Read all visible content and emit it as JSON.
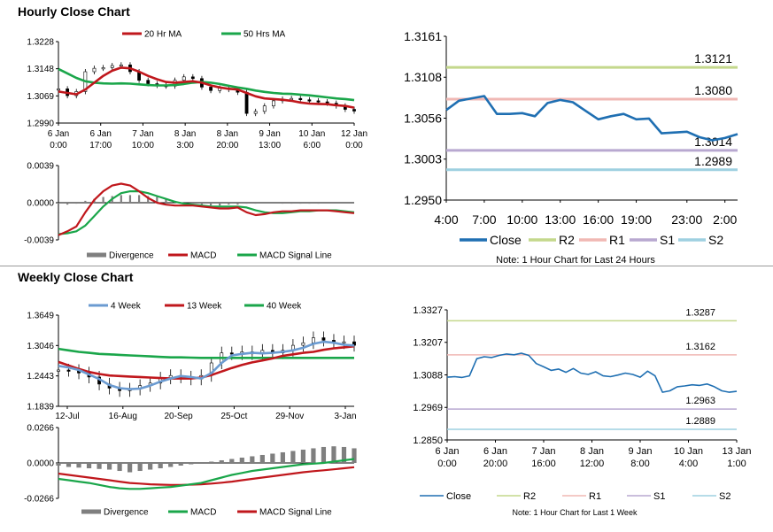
{
  "sections": {
    "hourly_title": "Hourly Close Chart",
    "weekly_title": "Weekly Close Chart"
  },
  "colors": {
    "close": "#1f6fb2",
    "ma_red": "#c0171c",
    "ma_green": "#1aa64a",
    "ma_blue": "#6b9bd1",
    "r2": "#c4d88c",
    "r1": "#f0b8b4",
    "s1": "#b8a8d0",
    "s2": "#9ed0e0",
    "divergence": "#7f7f7f",
    "candle": "#000000"
  },
  "chart_data": [
    {
      "id": "hourly_price",
      "type": "line",
      "title": "",
      "ylim": [
        1.299,
        1.3228
      ],
      "yticks": [
        "1.3228",
        "1.3148",
        "1.3069",
        "1.2990"
      ],
      "xticks": [
        {
          "date": "6 Jan",
          "time": "0:00"
        },
        {
          "date": "6 Jan",
          "time": "17:00"
        },
        {
          "date": "7 Jan",
          "time": "10:00"
        },
        {
          "date": "8 Jan",
          "time": "3:00"
        },
        {
          "date": "8 Jan",
          "time": "20:00"
        },
        {
          "date": "9 Jan",
          "time": "13:00"
        },
        {
          "date": "10 Jan",
          "time": "6:00"
        },
        {
          "date": "12 Jan",
          "time": "0:00"
        }
      ],
      "series": [
        {
          "name": "20 Hr MA",
          "values": [
            1.3082,
            1.3078,
            1.3074,
            1.3088,
            1.3108,
            1.3128,
            1.3143,
            1.3152,
            1.315,
            1.314,
            1.3128,
            1.3118,
            1.311,
            1.3108,
            1.311,
            1.3112,
            1.3108,
            1.31,
            1.3094,
            1.309,
            1.3088,
            1.3078,
            1.3068,
            1.3062,
            1.306,
            1.3058,
            1.3055,
            1.305,
            1.3047,
            1.3046,
            1.3045,
            1.3042,
            1.304,
            1.3035
          ]
        },
        {
          "name": "50 Hrs MA",
          "values": [
            1.3148,
            1.3135,
            1.3122,
            1.3112,
            1.3108,
            1.3106,
            1.3105,
            1.3106,
            1.3105,
            1.3103,
            1.3101,
            1.31,
            1.31,
            1.3101,
            1.3104,
            1.3108,
            1.311,
            1.3108,
            1.3104,
            1.3099,
            1.3094,
            1.309,
            1.3085,
            1.3081,
            1.3078,
            1.3076,
            1.3075,
            1.3073,
            1.3071,
            1.3068,
            1.3065,
            1.3062,
            1.306,
            1.3057
          ]
        },
        {
          "name": "Close",
          "values": [
            1.309,
            1.307,
            1.3082,
            1.314,
            1.315,
            1.3152,
            1.3158,
            1.316,
            1.314,
            1.3115,
            1.3105,
            1.31,
            1.3098,
            1.3115,
            1.3125,
            1.312,
            1.3095,
            1.3085,
            1.3092,
            1.3088,
            1.308,
            1.3018,
            1.3024,
            1.304,
            1.3055,
            1.306,
            1.3062,
            1.3058,
            1.3055,
            1.3052,
            1.3048,
            1.304,
            1.303,
            1.3025
          ]
        }
      ],
      "legend": [
        "20 Hr MA",
        "50 Hrs MA"
      ]
    },
    {
      "id": "hourly_macd",
      "type": "line",
      "ylim": [
        -0.0039,
        0.0039
      ],
      "yticks": [
        "0.0039",
        "0.0000",
        "-0.0039"
      ],
      "series": [
        {
          "name": "Divergence",
          "values": [
            -0.0001,
            -0.0002,
            -0.0001,
            0.0002,
            0.0004,
            0.0006,
            0.0007,
            0.0008,
            0.0008,
            0.0008,
            0.0007,
            0.0006,
            0.0004,
            0.0002,
            0.0,
            -0.0001,
            -0.0002,
            -0.0003,
            -0.0003,
            -0.0002,
            -0.0002,
            -0.0001,
            -0.0001,
            0.0,
            0.0,
            -0.0001,
            -0.0001,
            -0.0001,
            -0.0001,
            -0.0001,
            0.0,
            0.0,
            0.0,
            0.0
          ]
        },
        {
          "name": "MACD",
          "values": [
            -0.0034,
            -0.003,
            -0.0025,
            -0.001,
            0.0003,
            0.0012,
            0.0018,
            0.002,
            0.0018,
            0.0012,
            0.0005,
            0.0,
            -0.0002,
            -0.0003,
            -0.0003,
            -0.0003,
            -0.0004,
            -0.0005,
            -0.0006,
            -0.0006,
            -0.0005,
            -0.001,
            -0.0013,
            -0.0012,
            -0.001,
            -0.0009,
            -0.0009,
            -0.0008,
            -0.0008,
            -0.0008,
            -0.0008,
            -0.0009,
            -0.001,
            -0.0011
          ]
        },
        {
          "name": "MACD Signal Line",
          "values": [
            -0.0033,
            -0.0032,
            -0.003,
            -0.0024,
            -0.0014,
            -0.0004,
            0.0004,
            0.001,
            0.0012,
            0.0012,
            0.001,
            0.0007,
            0.0004,
            0.0001,
            -0.0001,
            -0.0002,
            -0.0003,
            -0.0004,
            -0.0004,
            -0.0004,
            -0.0004,
            -0.0005,
            -0.0008,
            -0.001,
            -0.0011,
            -0.0011,
            -0.001,
            -0.0009,
            -0.0009,
            -0.0008,
            -0.0008,
            -0.0008,
            -0.0009,
            -0.001
          ]
        }
      ],
      "legend": [
        "Divergence",
        "MACD",
        "MACD Signal Line"
      ]
    },
    {
      "id": "hourly_pivot",
      "type": "line",
      "ylim": [
        1.295,
        1.3161
      ],
      "yticks": [
        "1.3161",
        "1.3108",
        "1.3056",
        "1.3003",
        "1.2950"
      ],
      "categories": [
        "4:00",
        "5:00",
        "6:00",
        "7:00",
        "8:00",
        "9:00",
        "10:00",
        "11:00",
        "12:00",
        "13:00",
        "14:00",
        "15:00",
        "16:00",
        "17:00",
        "18:00",
        "19:00",
        "20:00",
        "21:00",
        "22:00",
        "23:00",
        "0:00",
        "1:00",
        "2:00",
        "3:00"
      ],
      "xtick_labels": [
        "4:00",
        "7:00",
        "10:00",
        "13:00",
        "16:00",
        "19:00",
        "23:00",
        "2:00"
      ],
      "series": [
        {
          "name": "Close",
          "values": [
            1.3066,
            1.3078,
            1.3081,
            1.3084,
            1.3061,
            1.3061,
            1.3062,
            1.3058,
            1.3075,
            1.3079,
            1.3076,
            1.3065,
            1.3054,
            1.3058,
            1.3061,
            1.3054,
            1.3055,
            1.3036,
            1.3037,
            1.3038,
            1.3031,
            1.3027,
            1.303,
            1.3035
          ]
        }
      ],
      "levels": [
        {
          "name": "R2",
          "value": 1.3121,
          "label": "1.3121"
        },
        {
          "name": "R1",
          "value": 1.308,
          "label": "1.3080"
        },
        {
          "name": "S1",
          "value": 1.3014,
          "label": "1.3014"
        },
        {
          "name": "S2",
          "value": 1.2989,
          "label": "1.2989"
        }
      ],
      "legend": [
        "Close",
        "R2",
        "R1",
        "S1",
        "S2"
      ],
      "note": "Note: 1 Hour Chart for Last 24 Hours"
    },
    {
      "id": "weekly_price",
      "type": "line",
      "ylim": [
        1.1839,
        1.3649
      ],
      "yticks": [
        "1.3649",
        "1.3046",
        "1.2443",
        "1.1839"
      ],
      "xtick_labels": [
        "12-Jul",
        "16-Aug",
        "20-Sep",
        "25-Oct",
        "29-Nov",
        "3-Jan"
      ],
      "series": [
        {
          "name": "4 Week",
          "values": [
            1.264,
            1.261,
            1.256,
            1.247,
            1.238,
            1.226,
            1.22,
            1.218,
            1.219,
            1.225,
            1.233,
            1.239,
            1.244,
            1.242,
            1.239,
            1.25,
            1.27,
            1.285,
            1.288,
            1.29,
            1.289,
            1.29,
            1.292,
            1.295,
            1.3,
            1.308,
            1.312,
            1.31,
            1.306,
            1.3046
          ]
        },
        {
          "name": "13 Week",
          "values": [
            1.272,
            1.265,
            1.258,
            1.252,
            1.248,
            1.245,
            1.244,
            1.243,
            1.242,
            1.241,
            1.24,
            1.239,
            1.239,
            1.239,
            1.241,
            1.246,
            1.253,
            1.26,
            1.266,
            1.271,
            1.275,
            1.279,
            1.284,
            1.287,
            1.29,
            1.292,
            1.296,
            1.299,
            1.301,
            1.303
          ]
        },
        {
          "name": "40 Week",
          "values": [
            1.298,
            1.295,
            1.292,
            1.29,
            1.288,
            1.287,
            1.286,
            1.285,
            1.284,
            1.283,
            1.282,
            1.281,
            1.281,
            1.2805,
            1.28,
            1.28,
            1.28,
            1.28,
            1.28,
            1.28,
            1.28,
            1.28,
            1.28,
            1.28,
            1.28,
            1.28,
            1.28,
            1.28,
            1.28,
            1.28
          ]
        },
        {
          "name": "Close",
          "values": [
            1.256,
            1.255,
            1.25,
            1.242,
            1.228,
            1.22,
            1.215,
            1.218,
            1.225,
            1.23,
            1.24,
            1.245,
            1.242,
            1.238,
            1.245,
            1.27,
            1.29,
            1.288,
            1.292,
            1.288,
            1.295,
            1.29,
            1.295,
            1.305,
            1.31,
            1.32,
            1.315,
            1.31,
            1.312,
            1.305
          ]
        }
      ],
      "legend": [
        "4 Week",
        "13 Week",
        "40 Week"
      ]
    },
    {
      "id": "weekly_macd",
      "type": "line",
      "ylim": [
        -0.0266,
        0.0266
      ],
      "yticks": [
        "0.0266",
        "0.0000",
        "-0.0266"
      ],
      "series": [
        {
          "name": "Divergence",
          "values": [
            -0.002,
            -0.003,
            -0.0035,
            -0.004,
            -0.0045,
            -0.005,
            -0.006,
            -0.007,
            -0.006,
            -0.005,
            -0.004,
            -0.003,
            -0.002,
            -0.001,
            0.0,
            0.001,
            0.002,
            0.003,
            0.004,
            0.005,
            0.006,
            0.007,
            0.008,
            0.009,
            0.01,
            0.011,
            0.012,
            0.0125,
            0.012,
            0.011
          ]
        },
        {
          "name": "MACD",
          "values": [
            -0.012,
            -0.013,
            -0.014,
            -0.015,
            -0.0165,
            -0.018,
            -0.019,
            -0.0195,
            -0.0195,
            -0.019,
            -0.0185,
            -0.018,
            -0.017,
            -0.016,
            -0.015,
            -0.013,
            -0.011,
            -0.009,
            -0.0075,
            -0.006,
            -0.005,
            -0.004,
            -0.003,
            -0.002,
            -0.001,
            -0.0005,
            0.0,
            0.001,
            0.002,
            0.003
          ]
        },
        {
          "name": "MACD Signal Line",
          "values": [
            -0.008,
            -0.009,
            -0.01,
            -0.011,
            -0.012,
            -0.013,
            -0.014,
            -0.015,
            -0.0155,
            -0.016,
            -0.0163,
            -0.0165,
            -0.0165,
            -0.0163,
            -0.016,
            -0.0155,
            -0.0148,
            -0.014,
            -0.013,
            -0.012,
            -0.011,
            -0.01,
            -0.009,
            -0.008,
            -0.007,
            -0.0062,
            -0.0055,
            -0.0048,
            -0.004,
            -0.0032
          ]
        }
      ],
      "legend": [
        "Divergence",
        "MACD",
        "MACD Signal Line"
      ]
    },
    {
      "id": "weekly_pivot",
      "type": "line",
      "ylim": [
        1.285,
        1.3327
      ],
      "yticks": [
        "1.3327",
        "1.3207",
        "1.3088",
        "1.2969",
        "1.2850"
      ],
      "xtick_labels": [
        {
          "date": "6 Jan",
          "time": "0:00"
        },
        {
          "date": "6 Jan",
          "time": "20:00"
        },
        {
          "date": "7 Jan",
          "time": "16:00"
        },
        {
          "date": "8 Jan",
          "time": "12:00"
        },
        {
          "date": "9 Jan",
          "time": "8:00"
        },
        {
          "date": "10 Jan",
          "time": "4:00"
        },
        {
          "date": "13 Jan",
          "time": "1:00"
        }
      ],
      "series": [
        {
          "name": "Close",
          "values": [
            1.308,
            1.3082,
            1.3079,
            1.3085,
            1.3148,
            1.3155,
            1.3152,
            1.316,
            1.3165,
            1.3162,
            1.3168,
            1.316,
            1.313,
            1.3118,
            1.3105,
            1.311,
            1.3098,
            1.3112,
            1.3095,
            1.309,
            1.31,
            1.3085,
            1.3082,
            1.3088,
            1.3095,
            1.309,
            1.308,
            1.3102,
            1.3085,
            1.3025,
            1.303,
            1.3045,
            1.3048,
            1.3052,
            1.305,
            1.3055,
            1.3045,
            1.303,
            1.3025,
            1.3028
          ]
        }
      ],
      "levels": [
        {
          "name": "R2",
          "value": 1.3287,
          "label": "1.3287"
        },
        {
          "name": "R1",
          "value": 1.3162,
          "label": "1.3162"
        },
        {
          "name": "S1",
          "value": 1.2963,
          "label": "1.2963"
        },
        {
          "name": "S2",
          "value": 1.2889,
          "label": "1.2889"
        }
      ],
      "legend": [
        "Close",
        "R2",
        "R1",
        "S1",
        "S2"
      ],
      "note": "Note: 1 Hour Chart for Last 1 Week"
    }
  ]
}
